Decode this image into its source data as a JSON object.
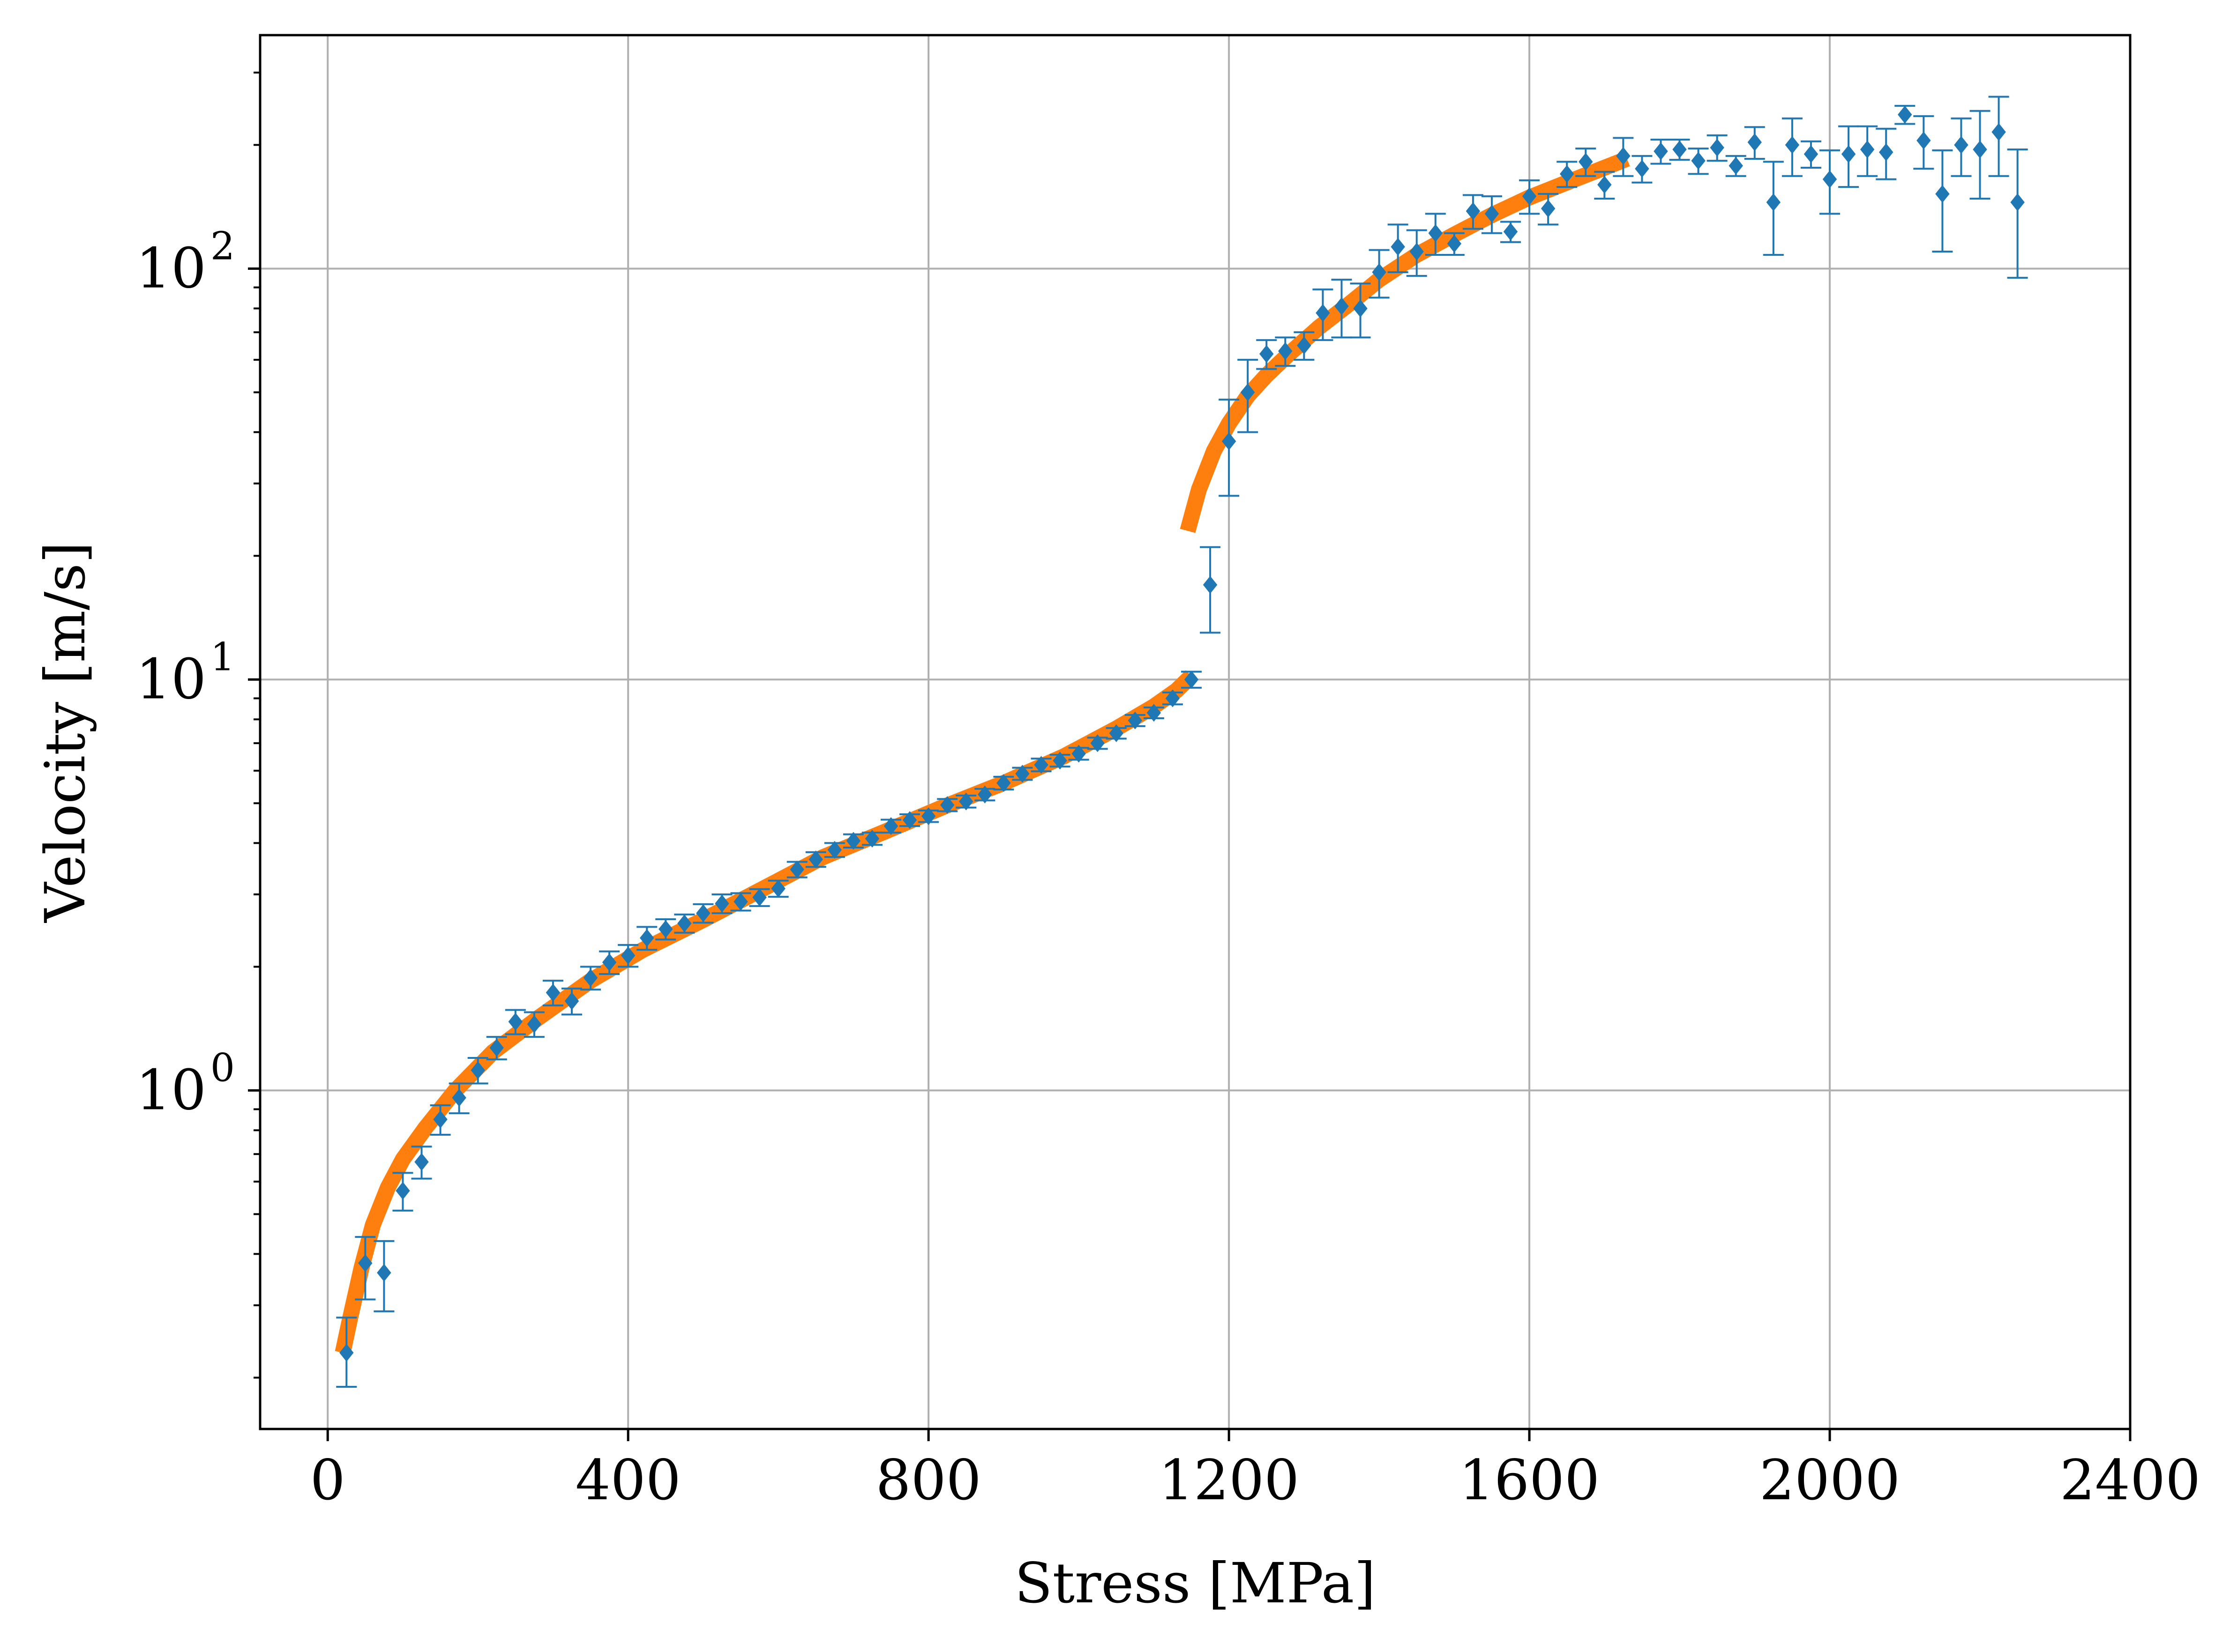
{
  "chart_data": {
    "type": "scatter",
    "title": "",
    "xlabel": "Stress [MPa]",
    "ylabel": "Velocity [m/s]",
    "xlim": [
      -90,
      2400
    ],
    "ylim": [
      0.15,
      370
    ],
    "yscale": "log",
    "grid": true,
    "legend": "none",
    "x_ticks": [
      0,
      400,
      800,
      1200,
      1600,
      2000,
      2400
    ],
    "y_ticks": [
      {
        "value": 1,
        "base": "10",
        "exp": "0"
      },
      {
        "value": 10,
        "base": "10",
        "exp": "1"
      },
      {
        "value": 100,
        "base": "10",
        "exp": "2"
      }
    ],
    "colors": {
      "data": "#1f77b4",
      "fit": "#ff7f0e",
      "grid": "#b0b0b0"
    },
    "fit_segments": [
      {
        "x": [
          20,
          30,
          45,
          60,
          80,
          100,
          130,
          170,
          220,
          280,
          350,
          420,
          500,
          580,
          660,
          740,
          820,
          900,
          980,
          1050,
          1100,
          1130,
          1150
        ],
        "y": [
          0.23,
          0.28,
          0.37,
          0.47,
          0.58,
          0.68,
          0.81,
          1.0,
          1.24,
          1.5,
          1.85,
          2.2,
          2.6,
          3.1,
          3.7,
          4.25,
          4.9,
          5.6,
          6.5,
          7.6,
          8.6,
          9.4,
          10.2
        ]
      },
      {
        "x": [
          1145,
          1160,
          1180,
          1200,
          1225,
          1250,
          1280,
          1320,
          1360,
          1400,
          1450,
          1500,
          1550,
          1600,
          1650,
          1700,
          1730
        ],
        "y": [
          23,
          29,
          36,
          42,
          49,
          55,
          62,
          72,
          82,
          94,
          108,
          121,
          135,
          149,
          162,
          176,
          185
        ]
      }
    ],
    "series": [
      {
        "x": [
          25,
          50,
          75,
          100,
          125,
          150,
          175,
          200,
          225,
          250,
          275,
          300,
          325,
          350,
          375,
          400,
          425,
          450,
          475,
          500,
          525,
          550,
          575,
          600,
          625,
          650,
          675,
          700,
          725,
          750,
          775,
          800,
          825,
          850,
          875,
          900,
          925,
          950,
          975,
          1000,
          1025,
          1050,
          1075,
          1100,
          1125,
          1150,
          1175,
          1200,
          1225,
          1250,
          1275,
          1300,
          1325,
          1350,
          1375,
          1400,
          1425,
          1450,
          1475,
          1500,
          1525,
          1550,
          1575,
          1600,
          1625,
          1650,
          1675,
          1700,
          1725,
          1750,
          1775,
          1800,
          1825,
          1850,
          1875,
          1900,
          1925,
          1950,
          1975,
          2000,
          2025,
          2050,
          2075,
          2100,
          2125,
          2150,
          2175,
          2200,
          2225,
          2250
        ],
        "y": [
          0.23,
          0.38,
          0.36,
          0.57,
          0.67,
          0.85,
          0.96,
          1.12,
          1.27,
          1.47,
          1.45,
          1.73,
          1.65,
          1.88,
          2.05,
          2.13,
          2.35,
          2.47,
          2.55,
          2.7,
          2.85,
          2.88,
          2.95,
          3.1,
          3.45,
          3.65,
          3.85,
          4.05,
          4.1,
          4.4,
          4.55,
          4.65,
          4.95,
          5.05,
          5.25,
          5.6,
          5.9,
          6.2,
          6.35,
          6.6,
          7.0,
          7.4,
          7.95,
          8.3,
          9.0,
          10.0,
          17.0,
          38.0,
          50.0,
          62.0,
          63.0,
          65.0,
          78.0,
          81.0,
          80.0,
          98.0,
          113.0,
          110.0,
          122.0,
          115.0,
          138.0,
          136.0,
          123.0,
          150.0,
          140.0,
          170.0,
          182.0,
          160.0,
          188.0,
          175.0,
          193.0,
          195.0,
          183.0,
          197.0,
          178.0,
          203.0,
          145.0,
          200.0,
          190.0,
          165.0,
          190.0,
          195.0,
          192.0,
          237.0,
          205.0,
          152.0,
          200.0,
          195.0,
          215.0,
          145.0
        ],
        "err_low": [
          0.19,
          0.31,
          0.29,
          0.51,
          0.61,
          0.78,
          0.88,
          1.04,
          1.19,
          1.37,
          1.35,
          1.61,
          1.53,
          1.76,
          1.92,
          2.0,
          2.2,
          2.33,
          2.42,
          2.56,
          2.7,
          2.74,
          2.81,
          2.96,
          3.3,
          3.5,
          3.7,
          3.9,
          3.96,
          4.24,
          4.4,
          4.5,
          4.78,
          4.88,
          5.08,
          5.4,
          5.7,
          5.98,
          6.14,
          6.38,
          6.78,
          7.18,
          7.7,
          8.05,
          8.7,
          9.55,
          13.0,
          28.0,
          40.0,
          57.0,
          58.0,
          60.0,
          67.0,
          68.0,
          68.0,
          85.0,
          98.0,
          96.0,
          108.0,
          108.0,
          125.0,
          122.0,
          116.0,
          136.0,
          128.0,
          158.0,
          168.0,
          148.0,
          168.0,
          162.0,
          180.0,
          184.0,
          170.0,
          183.0,
          168.0,
          185.0,
          108.0,
          168.0,
          176.0,
          136.0,
          158.0,
          168.0,
          165.0,
          225.0,
          175.0,
          110.0,
          168.0,
          148.0,
          168.0,
          95.0
        ],
        "err_high": [
          0.28,
          0.44,
          0.43,
          0.63,
          0.73,
          0.92,
          1.04,
          1.2,
          1.35,
          1.57,
          1.55,
          1.85,
          1.77,
          2.0,
          2.18,
          2.26,
          2.5,
          2.61,
          2.68,
          2.84,
          3.0,
          3.02,
          3.09,
          3.24,
          3.6,
          3.8,
          4.0,
          4.2,
          4.24,
          4.56,
          4.7,
          4.8,
          5.12,
          5.22,
          5.42,
          5.8,
          6.1,
          6.42,
          6.56,
          6.82,
          7.22,
          7.62,
          8.2,
          8.55,
          9.3,
          10.45,
          21.0,
          48.0,
          60.0,
          67.0,
          68.0,
          70.0,
          89.0,
          94.0,
          92.0,
          111.0,
          128.0,
          124.0,
          136.0,
          122.0,
          151.0,
          150.0,
          130.0,
          164.0,
          152.0,
          182.0,
          196.0,
          172.0,
          208.0,
          188.0,
          206.0,
          206.0,
          196.0,
          211.0,
          188.0,
          221.0,
          182.0,
          232.0,
          204.0,
          194.0,
          222.0,
          222.0,
          219.0,
          249.0,
          235.0,
          194.0,
          232.0,
          242.0,
          262.0,
          195.0
        ]
      }
    ]
  }
}
